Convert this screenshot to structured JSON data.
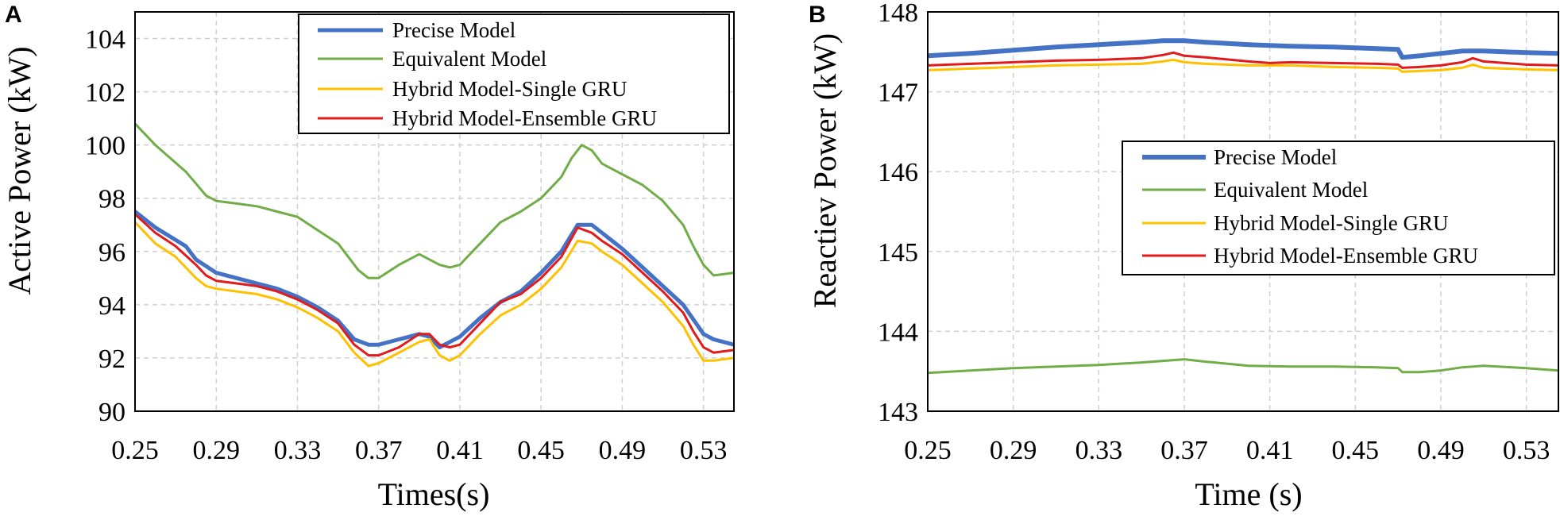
{
  "colors": {
    "precise": "#4472C4",
    "equivalent": "#70AD47",
    "single_gru": "#FFC000",
    "ensemble_gru": "#E31A1C",
    "grid": "#D0D0D0"
  },
  "chart_data": [
    {
      "type": "line",
      "panel_label": "A",
      "title": "",
      "xlabel": "Times(s)",
      "ylabel": "Active Power (kW)",
      "xlim": [
        0.25,
        0.545
      ],
      "ylim": [
        90,
        105
      ],
      "x_ticks": [
        0.25,
        0.29,
        0.33,
        0.37,
        0.41,
        0.45,
        0.49,
        0.53
      ],
      "x_tick_labels": [
        "0.25",
        "0.29",
        "0.33",
        "0.37",
        "0.41",
        "0.45",
        "0.49",
        "0.53"
      ],
      "y_ticks": [
        90,
        92,
        94,
        96,
        98,
        100,
        102,
        104
      ],
      "y_tick_labels": [
        "90",
        "92",
        "94",
        "96",
        "98",
        "100",
        "102",
        "104"
      ],
      "grid": true,
      "legend_position": "top-right",
      "series": [
        {
          "name": "Precise Model",
          "color_key": "precise",
          "width": 5,
          "points": [
            [
              0.25,
              97.5
            ],
            [
              0.26,
              96.9
            ],
            [
              0.275,
              96.2
            ],
            [
              0.28,
              95.7
            ],
            [
              0.29,
              95.2
            ],
            [
              0.3,
              95.0
            ],
            [
              0.31,
              94.8
            ],
            [
              0.32,
              94.6
            ],
            [
              0.33,
              94.3
            ],
            [
              0.34,
              93.9
            ],
            [
              0.35,
              93.4
            ],
            [
              0.358,
              92.7
            ],
            [
              0.365,
              92.5
            ],
            [
              0.37,
              92.5
            ],
            [
              0.38,
              92.7
            ],
            [
              0.39,
              92.9
            ],
            [
              0.395,
              92.8
            ],
            [
              0.4,
              92.4
            ],
            [
              0.405,
              92.6
            ],
            [
              0.41,
              92.8
            ],
            [
              0.42,
              93.5
            ],
            [
              0.43,
              94.1
            ],
            [
              0.44,
              94.5
            ],
            [
              0.45,
              95.2
            ],
            [
              0.46,
              96.0
            ],
            [
              0.468,
              97.0
            ],
            [
              0.475,
              97.0
            ],
            [
              0.48,
              96.7
            ],
            [
              0.49,
              96.1
            ],
            [
              0.5,
              95.4
            ],
            [
              0.51,
              94.7
            ],
            [
              0.52,
              94.0
            ],
            [
              0.53,
              92.9
            ],
            [
              0.535,
              92.7
            ],
            [
              0.545,
              92.5
            ]
          ]
        },
        {
          "name": "Equivalent Model",
          "color_key": "equivalent",
          "width": 3,
          "points": [
            [
              0.25,
              100.8
            ],
            [
              0.26,
              100.0
            ],
            [
              0.275,
              99.0
            ],
            [
              0.285,
              98.1
            ],
            [
              0.29,
              97.9
            ],
            [
              0.3,
              97.8
            ],
            [
              0.31,
              97.7
            ],
            [
              0.32,
              97.5
            ],
            [
              0.33,
              97.3
            ],
            [
              0.34,
              96.8
            ],
            [
              0.35,
              96.3
            ],
            [
              0.36,
              95.3
            ],
            [
              0.365,
              95.0
            ],
            [
              0.37,
              95.0
            ],
            [
              0.38,
              95.5
            ],
            [
              0.39,
              95.9
            ],
            [
              0.4,
              95.5
            ],
            [
              0.405,
              95.4
            ],
            [
              0.41,
              95.5
            ],
            [
              0.42,
              96.3
            ],
            [
              0.43,
              97.1
            ],
            [
              0.44,
              97.5
            ],
            [
              0.45,
              98.0
            ],
            [
              0.46,
              98.8
            ],
            [
              0.465,
              99.5
            ],
            [
              0.47,
              100.0
            ],
            [
              0.475,
              99.8
            ],
            [
              0.48,
              99.3
            ],
            [
              0.49,
              98.9
            ],
            [
              0.5,
              98.5
            ],
            [
              0.51,
              97.9
            ],
            [
              0.52,
              97.0
            ],
            [
              0.525,
              96.2
            ],
            [
              0.53,
              95.5
            ],
            [
              0.535,
              95.1
            ],
            [
              0.545,
              95.2
            ]
          ]
        },
        {
          "name": "Hybrid Model-Single GRU",
          "color_key": "single_gru",
          "width": 3,
          "points": [
            [
              0.25,
              97.1
            ],
            [
              0.26,
              96.3
            ],
            [
              0.27,
              95.8
            ],
            [
              0.28,
              95.0
            ],
            [
              0.285,
              94.7
            ],
            [
              0.29,
              94.6
            ],
            [
              0.3,
              94.5
            ],
            [
              0.31,
              94.4
            ],
            [
              0.32,
              94.2
            ],
            [
              0.33,
              93.9
            ],
            [
              0.34,
              93.5
            ],
            [
              0.35,
              93.0
            ],
            [
              0.358,
              92.2
            ],
            [
              0.365,
              91.7
            ],
            [
              0.37,
              91.8
            ],
            [
              0.38,
              92.2
            ],
            [
              0.39,
              92.6
            ],
            [
              0.395,
              92.7
            ],
            [
              0.4,
              92.1
            ],
            [
              0.405,
              91.9
            ],
            [
              0.41,
              92.1
            ],
            [
              0.42,
              92.9
            ],
            [
              0.43,
              93.6
            ],
            [
              0.44,
              94.0
            ],
            [
              0.45,
              94.6
            ],
            [
              0.46,
              95.4
            ],
            [
              0.468,
              96.4
            ],
            [
              0.475,
              96.3
            ],
            [
              0.48,
              96.0
            ],
            [
              0.49,
              95.5
            ],
            [
              0.5,
              94.8
            ],
            [
              0.51,
              94.1
            ],
            [
              0.52,
              93.2
            ],
            [
              0.525,
              92.5
            ],
            [
              0.53,
              91.9
            ],
            [
              0.535,
              91.9
            ],
            [
              0.545,
              92.0
            ]
          ]
        },
        {
          "name": "Hybrid Model-Ensemble GRU",
          "color_key": "ensemble_gru",
          "width": 3,
          "points": [
            [
              0.25,
              97.4
            ],
            [
              0.26,
              96.7
            ],
            [
              0.27,
              96.2
            ],
            [
              0.28,
              95.5
            ],
            [
              0.285,
              95.1
            ],
            [
              0.29,
              94.9
            ],
            [
              0.3,
              94.8
            ],
            [
              0.31,
              94.7
            ],
            [
              0.32,
              94.5
            ],
            [
              0.33,
              94.2
            ],
            [
              0.34,
              93.8
            ],
            [
              0.35,
              93.3
            ],
            [
              0.358,
              92.5
            ],
            [
              0.365,
              92.1
            ],
            [
              0.37,
              92.1
            ],
            [
              0.38,
              92.4
            ],
            [
              0.39,
              92.9
            ],
            [
              0.395,
              92.9
            ],
            [
              0.4,
              92.5
            ],
            [
              0.405,
              92.4
            ],
            [
              0.41,
              92.5
            ],
            [
              0.42,
              93.3
            ],
            [
              0.43,
              94.1
            ],
            [
              0.44,
              94.4
            ],
            [
              0.45,
              95.0
            ],
            [
              0.46,
              95.8
            ],
            [
              0.468,
              96.9
            ],
            [
              0.475,
              96.7
            ],
            [
              0.48,
              96.4
            ],
            [
              0.49,
              95.9
            ],
            [
              0.5,
              95.2
            ],
            [
              0.51,
              94.5
            ],
            [
              0.52,
              93.7
            ],
            [
              0.525,
              93.0
            ],
            [
              0.53,
              92.4
            ],
            [
              0.535,
              92.2
            ],
            [
              0.545,
              92.3
            ]
          ]
        }
      ]
    },
    {
      "type": "line",
      "panel_label": "B",
      "title": "",
      "xlabel": "Time (s)",
      "ylabel": "Reactiev Power (kW)",
      "xlim": [
        0.25,
        0.545
      ],
      "ylim": [
        143,
        148
      ],
      "x_ticks": [
        0.25,
        0.29,
        0.33,
        0.37,
        0.41,
        0.45,
        0.49,
        0.53
      ],
      "x_tick_labels": [
        "0.25",
        "0.29",
        "0.33",
        "0.37",
        "0.41",
        "0.45",
        "0.49",
        "0.53"
      ],
      "y_ticks": [
        143,
        144,
        145,
        146,
        147,
        148
      ],
      "y_tick_labels": [
        "143",
        "144",
        "145",
        "146",
        "147",
        "148"
      ],
      "grid": true,
      "legend_position": "center-right",
      "series": [
        {
          "name": "Precise Model",
          "color_key": "precise",
          "width": 6,
          "points": [
            [
              0.25,
              147.45
            ],
            [
              0.27,
              147.48
            ],
            [
              0.29,
              147.52
            ],
            [
              0.31,
              147.56
            ],
            [
              0.33,
              147.59
            ],
            [
              0.35,
              147.62
            ],
            [
              0.36,
              147.64
            ],
            [
              0.37,
              147.64
            ],
            [
              0.38,
              147.62
            ],
            [
              0.4,
              147.59
            ],
            [
              0.42,
              147.57
            ],
            [
              0.44,
              147.56
            ],
            [
              0.46,
              147.54
            ],
            [
              0.47,
              147.53
            ],
            [
              0.472,
              147.43
            ],
            [
              0.48,
              147.45
            ],
            [
              0.49,
              147.48
            ],
            [
              0.5,
              147.51
            ],
            [
              0.51,
              147.51
            ],
            [
              0.53,
              147.49
            ],
            [
              0.545,
              147.48
            ]
          ]
        },
        {
          "name": "Equivalent Model",
          "color_key": "equivalent",
          "width": 3,
          "points": [
            [
              0.25,
              143.48
            ],
            [
              0.27,
              143.51
            ],
            [
              0.29,
              143.54
            ],
            [
              0.31,
              143.56
            ],
            [
              0.33,
              143.58
            ],
            [
              0.35,
              143.61
            ],
            [
              0.365,
              143.64
            ],
            [
              0.37,
              143.65
            ],
            [
              0.38,
              143.62
            ],
            [
              0.4,
              143.57
            ],
            [
              0.42,
              143.56
            ],
            [
              0.44,
              143.56
            ],
            [
              0.46,
              143.55
            ],
            [
              0.47,
              143.54
            ],
            [
              0.472,
              143.49
            ],
            [
              0.48,
              143.49
            ],
            [
              0.49,
              143.51
            ],
            [
              0.5,
              143.55
            ],
            [
              0.51,
              143.57
            ],
            [
              0.53,
              143.54
            ],
            [
              0.545,
              143.51
            ]
          ]
        },
        {
          "name": "Hybrid Model-Single GRU",
          "color_key": "single_gru",
          "width": 3,
          "points": [
            [
              0.25,
              147.27
            ],
            [
              0.27,
              147.29
            ],
            [
              0.29,
              147.31
            ],
            [
              0.31,
              147.33
            ],
            [
              0.33,
              147.34
            ],
            [
              0.35,
              147.35
            ],
            [
              0.36,
              147.38
            ],
            [
              0.365,
              147.4
            ],
            [
              0.37,
              147.37
            ],
            [
              0.38,
              147.35
            ],
            [
              0.4,
              147.33
            ],
            [
              0.42,
              147.33
            ],
            [
              0.44,
              147.31
            ],
            [
              0.46,
              147.3
            ],
            [
              0.47,
              147.29
            ],
            [
              0.472,
              147.25
            ],
            [
              0.48,
              147.26
            ],
            [
              0.49,
              147.27
            ],
            [
              0.5,
              147.3
            ],
            [
              0.505,
              147.34
            ],
            [
              0.51,
              147.3
            ],
            [
              0.53,
              147.28
            ],
            [
              0.545,
              147.27
            ]
          ]
        },
        {
          "name": "Hybrid Model-Ensemble GRU",
          "color_key": "ensemble_gru",
          "width": 3,
          "points": [
            [
              0.25,
              147.33
            ],
            [
              0.27,
              147.35
            ],
            [
              0.29,
              147.37
            ],
            [
              0.31,
              147.39
            ],
            [
              0.33,
              147.4
            ],
            [
              0.35,
              147.42
            ],
            [
              0.36,
              147.46
            ],
            [
              0.365,
              147.49
            ],
            [
              0.37,
              147.45
            ],
            [
              0.38,
              147.43
            ],
            [
              0.4,
              147.38
            ],
            [
              0.41,
              147.36
            ],
            [
              0.42,
              147.37
            ],
            [
              0.44,
              147.36
            ],
            [
              0.46,
              147.35
            ],
            [
              0.47,
              147.34
            ],
            [
              0.472,
              147.3
            ],
            [
              0.48,
              147.31
            ],
            [
              0.49,
              147.33
            ],
            [
              0.5,
              147.37
            ],
            [
              0.505,
              147.42
            ],
            [
              0.51,
              147.38
            ],
            [
              0.53,
              147.34
            ],
            [
              0.545,
              147.33
            ]
          ]
        }
      ]
    }
  ]
}
